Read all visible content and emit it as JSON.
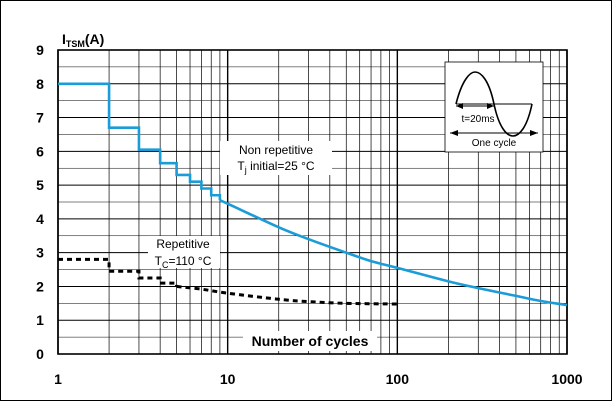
{
  "chart_data": {
    "type": "line",
    "title": "",
    "ylabel_main": "I",
    "ylabel_sub": "TSM",
    "ylabel_unit": "(A)",
    "xlabel": "Number of cycles",
    "x_scale": "log",
    "xlim": [
      1,
      1000
    ],
    "ylim": [
      0,
      9
    ],
    "x_ticks": [
      {
        "value": 1,
        "label": "1"
      },
      {
        "value": 10,
        "label": "10"
      },
      {
        "value": 100,
        "label": "100"
      },
      {
        "value": 1000,
        "label": "1000"
      }
    ],
    "y_ticks": [
      {
        "value": 0,
        "label": "0"
      },
      {
        "value": 1,
        "label": "1"
      },
      {
        "value": 2,
        "label": "2"
      },
      {
        "value": 3,
        "label": "3"
      },
      {
        "value": 4,
        "label": "4"
      },
      {
        "value": 5,
        "label": "5"
      },
      {
        "value": 6,
        "label": "6"
      },
      {
        "value": 7,
        "label": "7"
      },
      {
        "value": 8,
        "label": "8"
      },
      {
        "value": 9,
        "label": "9"
      }
    ],
    "grid": true,
    "series": [
      {
        "style": "solid",
        "color": "#1a9cd8",
        "step_points": [
          [
            1,
            8.0
          ],
          [
            2,
            8.0
          ],
          [
            2,
            6.7
          ],
          [
            3,
            6.7
          ],
          [
            3,
            6.05
          ],
          [
            4,
            6.05
          ],
          [
            4,
            5.65
          ],
          [
            5,
            5.65
          ],
          [
            5,
            5.3
          ],
          [
            6,
            5.3
          ],
          [
            6,
            5.1
          ],
          [
            7,
            5.1
          ],
          [
            7,
            4.9
          ],
          [
            8,
            4.9
          ],
          [
            8,
            4.7
          ],
          [
            9,
            4.7
          ],
          [
            9,
            4.55
          ]
        ],
        "curve_points": [
          [
            9,
            4.55
          ],
          [
            10,
            4.45
          ],
          [
            20,
            3.75
          ],
          [
            30,
            3.4
          ],
          [
            50,
            3.0
          ],
          [
            70,
            2.75
          ],
          [
            100,
            2.55
          ],
          [
            200,
            2.15
          ],
          [
            300,
            1.95
          ],
          [
            500,
            1.72
          ],
          [
            700,
            1.57
          ],
          [
            1000,
            1.45
          ]
        ],
        "annotation": {
          "line1": "Non repetitive",
          "line2_main": "T",
          "line2_sub": "j",
          "line2_rest": " initial=25 °C"
        }
      },
      {
        "style": "dashed",
        "color": "#000000",
        "step_points": [
          [
            1,
            2.8
          ],
          [
            2,
            2.8
          ],
          [
            2,
            2.45
          ],
          [
            3,
            2.45
          ],
          [
            3,
            2.25
          ],
          [
            4,
            2.25
          ],
          [
            4,
            2.1
          ],
          [
            5,
            2.1
          ],
          [
            5,
            2.0
          ]
        ],
        "curve_points": [
          [
            5,
            2.0
          ],
          [
            7,
            1.92
          ],
          [
            10,
            1.8
          ],
          [
            20,
            1.62
          ],
          [
            30,
            1.55
          ],
          [
            50,
            1.5
          ],
          [
            100,
            1.48
          ]
        ],
        "annotation": {
          "line1": "Repetitive",
          "line2_main": "T",
          "line2_sub": "C",
          "line2_rest": "=110 °C"
        }
      }
    ],
    "inset": {
      "time_label": "t=20ms",
      "cycle_label": "One cycle"
    }
  }
}
